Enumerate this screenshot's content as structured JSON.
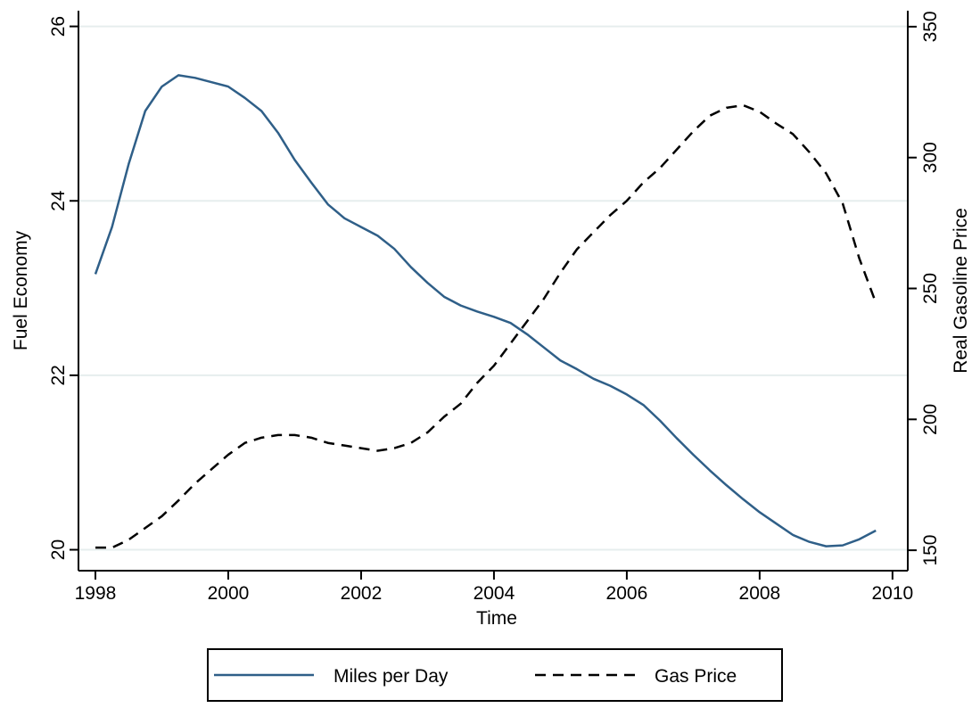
{
  "chart_data": {
    "type": "line",
    "xlabel": "Time",
    "ylabel": "Fuel Economy",
    "y2label": "Real Gasoline Price",
    "x": [
      1998.0,
      1998.25,
      1998.5,
      1998.75,
      1999.0,
      1999.25,
      1999.5,
      1999.75,
      2000.0,
      2000.25,
      2000.5,
      2000.75,
      2001.0,
      2001.25,
      2001.5,
      2001.75,
      2002.0,
      2002.25,
      2002.5,
      2002.75,
      2003.0,
      2003.25,
      2003.5,
      2003.75,
      2004.0,
      2004.25,
      2004.5,
      2004.75,
      2005.0,
      2005.25,
      2005.5,
      2005.75,
      2006.0,
      2006.25,
      2006.5,
      2006.75,
      2007.0,
      2007.25,
      2007.5,
      2007.75,
      2008.0,
      2008.25,
      2008.5,
      2008.75,
      2009.0,
      2009.25,
      2009.5,
      2009.75
    ],
    "series": [
      {
        "name": "Miles per Day",
        "color": "#2f5f88",
        "line_style": "solid",
        "axis": "y",
        "values": [
          23.16,
          23.7,
          24.42,
          25.03,
          25.31,
          25.44,
          25.41,
          25.36,
          25.31,
          25.18,
          25.03,
          24.78,
          24.47,
          24.21,
          23.96,
          23.8,
          23.7,
          23.6,
          23.45,
          23.24,
          23.06,
          22.9,
          22.8,
          22.73,
          22.67,
          22.6,
          22.47,
          22.32,
          22.17,
          22.07,
          21.96,
          21.88,
          21.78,
          21.66,
          21.48,
          21.28,
          21.09,
          20.91,
          20.74,
          20.58,
          20.43,
          20.3,
          20.17,
          20.09,
          20.04,
          20.05,
          20.12,
          20.22
        ]
      },
      {
        "name": "Gas Price",
        "color": "#000000",
        "line_style": "dashed",
        "axis": "y2",
        "values": [
          151,
          151,
          154,
          158.5,
          163,
          169,
          175.5,
          181,
          186.5,
          191,
          193,
          194,
          194,
          193,
          191,
          190,
          189,
          188,
          189,
          191,
          195,
          201,
          206,
          214,
          220.5,
          229,
          237.5,
          246,
          256,
          265,
          271.5,
          278,
          283.5,
          290.5,
          296,
          303,
          310,
          316,
          319,
          320,
          317.5,
          313,
          309,
          302,
          294,
          282.5,
          261.5,
          244.5
        ]
      }
    ],
    "xlim": [
      1997.745,
      2010.23
    ],
    "xticks": [
      1998,
      2000,
      2002,
      2004,
      2006,
      2008,
      2010
    ],
    "ylim": [
      19.76,
      26.18
    ],
    "yticks": [
      20,
      22,
      24,
      26
    ],
    "y2lim": [
      142.2,
      356.1
    ],
    "y2ticks": [
      150,
      200,
      250,
      300,
      350
    ],
    "grid": true,
    "legend": "bottom"
  }
}
